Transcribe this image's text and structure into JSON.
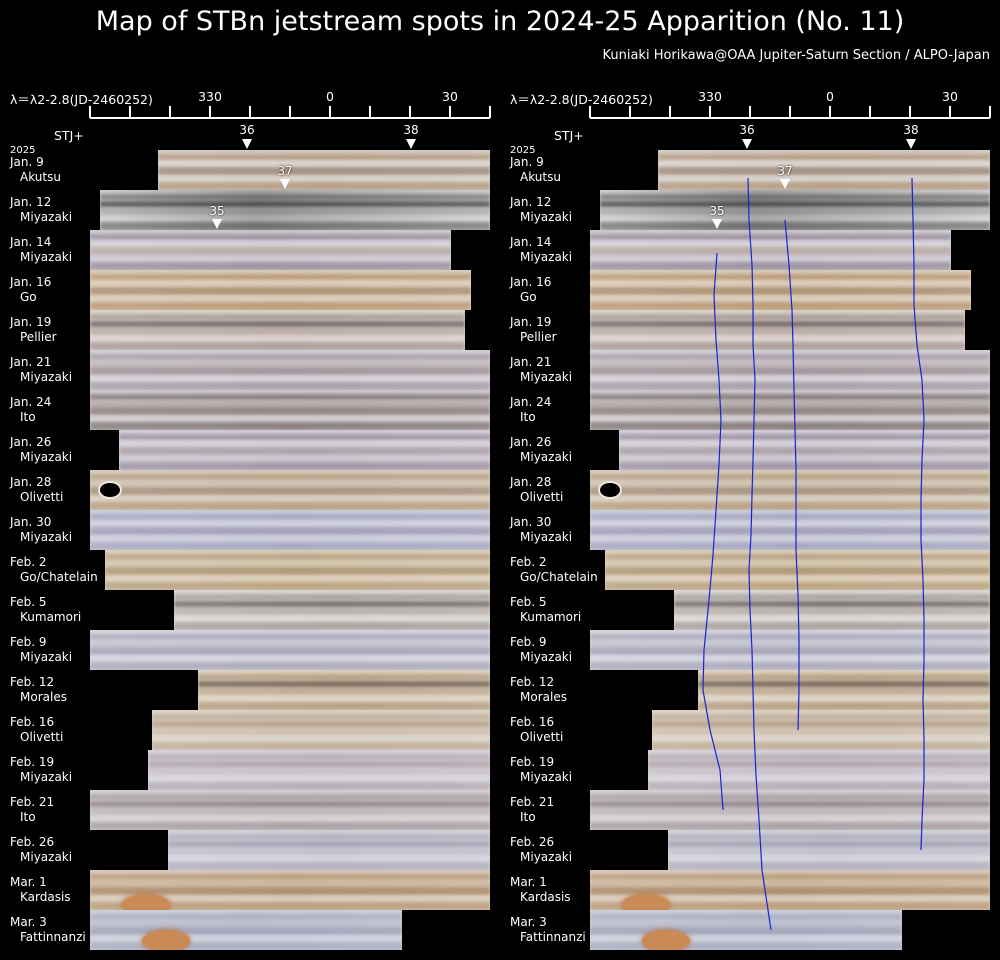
{
  "title": "Map of STBn jetstream spots in 2024-25 Apparition (No. 11)",
  "credit": "Kuniaki Horikawa@OAA Jupiter-Saturn Section / ALPO-Japan",
  "axis": {
    "label": "λ＝λ2-2.8(JD-2460252)",
    "ticks": [
      "330",
      "0",
      "30"
    ]
  },
  "stj_label": "STJ+",
  "year_label": "2025",
  "header_spots": [
    "36",
    "38"
  ],
  "inline_spots": {
    "jan9": "37",
    "jan12": "35"
  },
  "colors": {
    "track_line": "#1a22d6",
    "background": "#000000"
  },
  "rows": [
    {
      "date": "Jan. 9",
      "observer": "Akutsu"
    },
    {
      "date": "Jan. 12",
      "observer": "Miyazaki"
    },
    {
      "date": "Jan. 14",
      "observer": "Miyazaki"
    },
    {
      "date": "Jan. 16",
      "observer": "Go"
    },
    {
      "date": "Jan. 19",
      "observer": "Pellier"
    },
    {
      "date": "Jan. 21",
      "observer": "Miyazaki"
    },
    {
      "date": "Jan. 24",
      "observer": "Ito"
    },
    {
      "date": "Jan. 26",
      "observer": "Miyazaki"
    },
    {
      "date": "Jan. 28",
      "observer": "Olivetti"
    },
    {
      "date": "Jan. 30",
      "observer": "Miyazaki"
    },
    {
      "date": "Feb. 2",
      "observer": "Go/Chatelain"
    },
    {
      "date": "Feb. 5",
      "observer": "Kumamori"
    },
    {
      "date": "Feb. 9",
      "observer": "Miyazaki"
    },
    {
      "date": "Feb. 12",
      "observer": "Morales"
    },
    {
      "date": "Feb. 16",
      "observer": "Olivetti"
    },
    {
      "date": "Feb. 19",
      "observer": "Miyazaki"
    },
    {
      "date": "Feb. 21",
      "observer": "Ito"
    },
    {
      "date": "Feb. 26",
      "observer": "Miyazaki"
    },
    {
      "date": "Mar. 1",
      "observer": "Kardasis"
    },
    {
      "date": "Mar. 3",
      "observer": "Fattinnanzi"
    }
  ]
}
